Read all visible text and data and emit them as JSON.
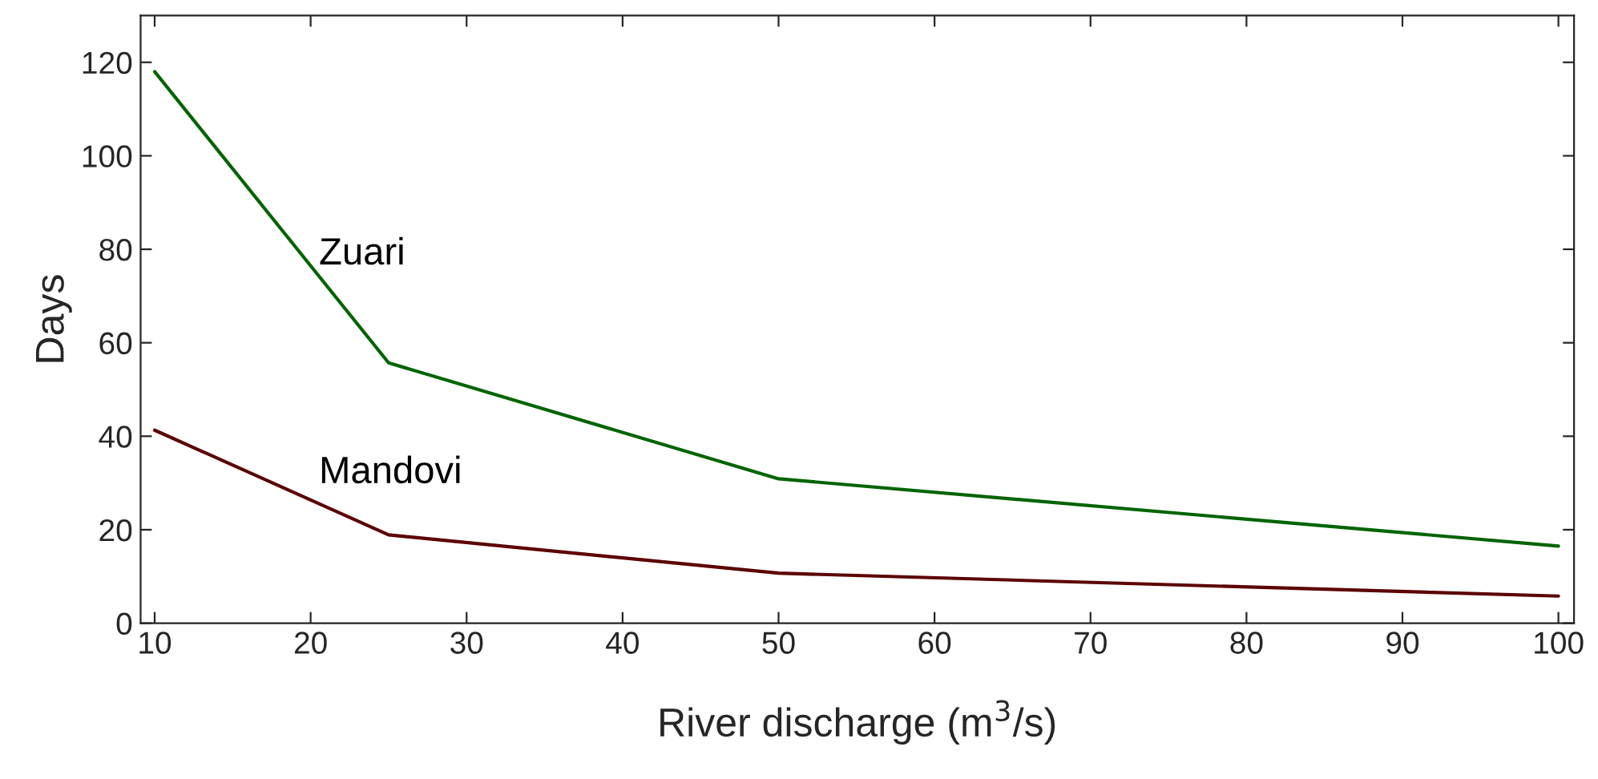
{
  "chart_data": {
    "type": "line",
    "xlabel": "River discharge (m$^{3}$/s)",
    "ylabel": "Days",
    "series": [
      {
        "name": "Zuari",
        "color": "#006400",
        "x": [
          10,
          25,
          50,
          100
        ],
        "values": [
          118,
          55.7,
          30.9,
          16.5
        ]
      },
      {
        "name": "Mandovi",
        "color": "#5c0000",
        "x": [
          10,
          25,
          50,
          100
        ],
        "values": [
          41.3,
          18.9,
          10.7,
          5.8
        ]
      }
    ],
    "xlim": [
      9.1,
      101
    ],
    "xticks": [
      10,
      20,
      30,
      40,
      50,
      60,
      70,
      80,
      90,
      100
    ],
    "ylim": [
      0,
      130
    ],
    "yticks": [
      0,
      20,
      40,
      60,
      80,
      100,
      120
    ],
    "grid": false,
    "legend": false,
    "marker": "none",
    "line_style": "solid"
  }
}
